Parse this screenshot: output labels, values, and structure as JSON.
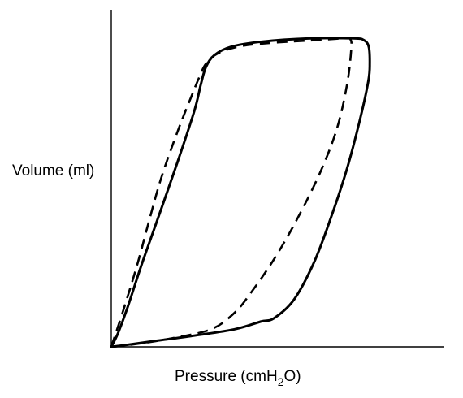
{
  "chart_data": {
    "type": "line",
    "title": "",
    "xlabel": {
      "text": "Pressure (cmH",
      "subscript": "2",
      "suffix": "O)"
    },
    "ylabel": "Volume (ml)",
    "x_ticks": [],
    "y_ticks": [],
    "grid": false,
    "legend": "none",
    "xlim": [
      0,
      100
    ],
    "ylim": [
      0,
      100
    ],
    "series": [
      {
        "style": "solid",
        "color": "#000000",
        "points": [
          [
            0,
            0
          ],
          [
            2,
            4
          ],
          [
            5,
            12
          ],
          [
            9,
            24
          ],
          [
            14,
            38
          ],
          [
            20,
            55
          ],
          [
            25,
            70
          ],
          [
            27,
            78
          ],
          [
            28.5,
            83
          ],
          [
            31,
            86.5
          ],
          [
            36,
            89
          ],
          [
            45,
            90.5
          ],
          [
            60,
            91.5
          ],
          [
            73,
            91.5
          ],
          [
            76,
            91
          ],
          [
            77.5,
            89
          ],
          [
            77.8,
            84
          ],
          [
            77.4,
            79
          ],
          [
            75,
            68
          ],
          [
            71,
            53
          ],
          [
            66,
            38
          ],
          [
            61,
            25
          ],
          [
            55,
            14
          ],
          [
            49,
            8.5
          ],
          [
            45,
            7.5
          ],
          [
            37,
            5.2
          ],
          [
            24,
            3.2
          ],
          [
            12,
            1.6
          ],
          [
            4,
            0.5
          ],
          [
            0,
            0
          ]
        ]
      },
      {
        "style": "dashed",
        "color": "#000000",
        "points": [
          [
            0,
            0
          ],
          [
            4,
            12
          ],
          [
            8,
            25
          ],
          [
            11,
            36
          ],
          [
            15,
            50
          ],
          [
            20,
            64
          ],
          [
            24,
            74
          ],
          [
            26.5,
            80
          ],
          [
            28.5,
            84
          ],
          [
            32,
            87
          ],
          [
            39,
            89.2
          ],
          [
            50,
            90.3
          ],
          [
            62,
            91
          ],
          [
            70,
            91.5
          ],
          [
            72,
            91.2
          ],
          [
            72.2,
            88
          ],
          [
            71,
            78
          ],
          [
            68,
            65
          ],
          [
            63,
            52
          ],
          [
            56,
            38
          ],
          [
            49,
            26
          ],
          [
            42,
            16
          ],
          [
            37,
            10
          ],
          [
            30,
            5.2
          ],
          [
            18,
            2.5
          ],
          [
            8,
            0.9
          ],
          [
            0,
            0
          ]
        ]
      }
    ]
  }
}
